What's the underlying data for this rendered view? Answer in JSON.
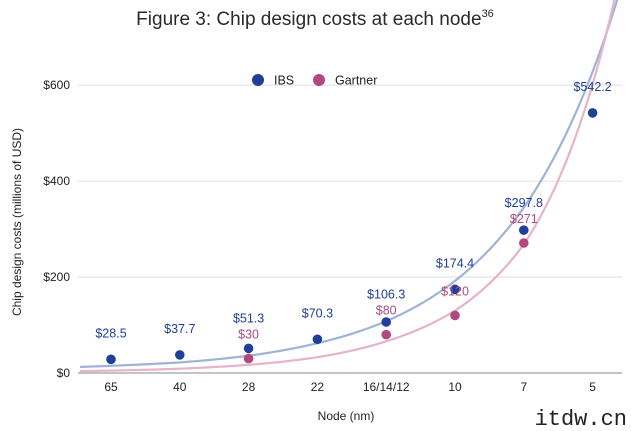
{
  "chart_data": {
    "type": "scatter",
    "title": "Figure 3: Chip design costs at each node",
    "title_superscript": "36",
    "xlabel": "Node (nm)",
    "ylabel": "Chip design costs (millions of USD)",
    "categories": [
      "65",
      "40",
      "28",
      "22",
      "16/14/12",
      "10",
      "7",
      "5"
    ],
    "y_ticks": [
      "$0",
      "$200",
      "$400",
      "$600"
    ],
    "y_tick_values": [
      0,
      200,
      400,
      600
    ],
    "ylim": [
      0,
      640
    ],
    "grid": "horizontal",
    "legend_position": "top-center",
    "series": [
      {
        "name": "IBS",
        "color": "#1f3f99",
        "trend_color": "#9fb3d6",
        "values": [
          28.5,
          37.7,
          51.3,
          70.3,
          106.3,
          174.4,
          297.8,
          542.2
        ],
        "labels": [
          "$28.5",
          "$37.7",
          "$51.3",
          "$70.3",
          "$106.3",
          "$174.4",
          "$297.8",
          "$542.2"
        ],
        "trend": [
          15,
          22,
          36,
          62,
          108,
          192,
          345,
          628
        ]
      },
      {
        "name": "Gartner",
        "color": "#b04a7e",
        "trend_color": "#e6b3c9",
        "values": [
          null,
          null,
          30,
          null,
          80,
          120,
          271,
          null
        ],
        "labels": [
          null,
          null,
          "$30",
          null,
          "$80",
          "$120",
          "$271",
          null
        ],
        "trend": [
          5,
          9,
          17,
          33,
          66,
          130,
          268,
          602
        ]
      }
    ]
  },
  "watermark": "itdw.cn"
}
